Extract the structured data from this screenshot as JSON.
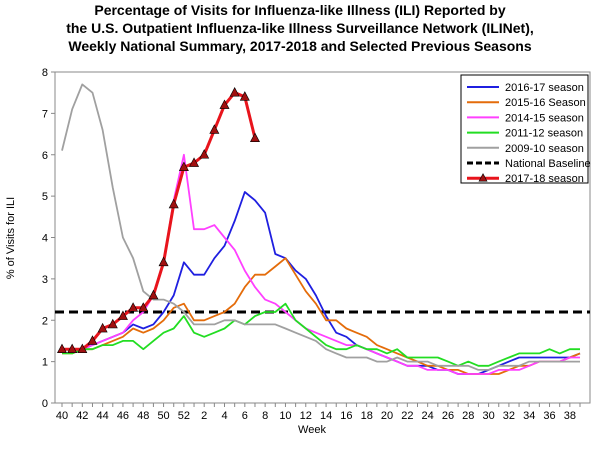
{
  "chart_data": {
    "type": "line",
    "title": [
      "Percentage of Visits for Influenza-like Illness (ILI) Reported by",
      "the U.S. Outpatient Influenza-like Illness Surveillance Network (ILINet),",
      "Weekly National Summary, 2017-2018 and Selected Previous Seasons"
    ],
    "x_label": "Week",
    "y_label": "% of Visits for ILI",
    "categories": [
      "40",
      null,
      "42",
      null,
      "44",
      null,
      "46",
      null,
      "48",
      null,
      "50",
      null,
      "52",
      null,
      "2",
      null,
      "4",
      null,
      "6",
      null,
      "8",
      null,
      "10",
      null,
      "12",
      null,
      "14",
      null,
      "16",
      null,
      "18",
      null,
      "20",
      null,
      "22",
      null,
      "24",
      null,
      "26",
      null,
      "28",
      null,
      "30",
      null,
      "32",
      null,
      "34",
      null,
      "36",
      null,
      "38",
      null
    ],
    "ylim": [
      0,
      8
    ],
    "yticks": [
      0,
      1,
      2,
      3,
      4,
      5,
      6,
      7,
      8
    ],
    "series": [
      {
        "name": "2016-17 season",
        "color": "#1f1fe0",
        "values": [
          1.3,
          1.3,
          1.3,
          1.4,
          1.5,
          1.6,
          1.7,
          1.9,
          1.8,
          1.9,
          2.2,
          2.6,
          3.4,
          3.1,
          3.1,
          3.5,
          3.8,
          4.4,
          5.1,
          4.9,
          4.6,
          3.6,
          3.5,
          3.2,
          3.0,
          2.6,
          2.1,
          1.7,
          1.6,
          1.4,
          1.3,
          1.2,
          1.1,
          1.0,
          0.9,
          0.9,
          0.9,
          0.8,
          0.8,
          0.7,
          0.7,
          0.7,
          0.8,
          0.9,
          1.0,
          1.1,
          1.1,
          1.1,
          1.1,
          1.1,
          1.1,
          1.2
        ]
      },
      {
        "name": "2015-16 Season",
        "color": "#e46c0a",
        "values": [
          1.2,
          1.2,
          1.3,
          1.3,
          1.4,
          1.5,
          1.6,
          1.8,
          1.7,
          1.8,
          2.0,
          2.3,
          2.4,
          2.0,
          2.0,
          2.1,
          2.2,
          2.4,
          2.8,
          3.1,
          3.1,
          3.3,
          3.5,
          3.1,
          2.7,
          2.4,
          2.0,
          2.0,
          1.8,
          1.7,
          1.6,
          1.4,
          1.3,
          1.2,
          1.1,
          1.0,
          0.9,
          0.9,
          0.8,
          0.8,
          0.7,
          0.7,
          0.7,
          0.7,
          0.8,
          0.9,
          0.9,
          1.0,
          1.0,
          1.0,
          1.1,
          1.2
        ]
      },
      {
        "name": "2014-15 season",
        "color": "#ff40ff",
        "values": [
          1.3,
          1.3,
          1.3,
          1.4,
          1.5,
          1.6,
          1.7,
          2.0,
          2.2,
          2.6,
          3.4,
          4.9,
          6.0,
          4.2,
          4.2,
          4.3,
          4.0,
          3.7,
          3.2,
          2.8,
          2.5,
          2.4,
          2.2,
          2.0,
          1.8,
          1.7,
          1.6,
          1.5,
          1.4,
          1.4,
          1.3,
          1.2,
          1.1,
          1.0,
          0.9,
          0.9,
          0.8,
          0.8,
          0.8,
          0.7,
          0.7,
          0.7,
          0.7,
          0.8,
          0.8,
          0.8,
          0.9,
          1.0,
          1.0,
          1.0,
          1.1,
          1.1
        ]
      },
      {
        "name": "2011-12 season",
        "color": "#22dd22",
        "values": [
          1.2,
          1.2,
          1.3,
          1.3,
          1.4,
          1.4,
          1.5,
          1.5,
          1.3,
          1.5,
          1.7,
          1.8,
          2.1,
          1.7,
          1.6,
          1.7,
          1.8,
          2.0,
          1.9,
          2.1,
          2.2,
          2.2,
          2.4,
          2.0,
          1.8,
          1.6,
          1.4,
          1.3,
          1.3,
          1.4,
          1.3,
          1.3,
          1.2,
          1.3,
          1.1,
          1.1,
          1.1,
          1.1,
          1.0,
          0.9,
          1.0,
          0.9,
          0.9,
          1.0,
          1.1,
          1.2,
          1.2,
          1.2,
          1.3,
          1.2,
          1.3,
          1.3
        ]
      },
      {
        "name": "2009-10 season",
        "color": "#a0a0a0",
        "values": [
          6.1,
          7.1,
          7.7,
          7.5,
          6.6,
          5.2,
          4.0,
          3.5,
          2.7,
          2.5,
          2.5,
          2.4,
          2.2,
          1.9,
          1.9,
          1.9,
          2.0,
          2.0,
          1.9,
          1.9,
          1.9,
          1.9,
          1.8,
          1.7,
          1.6,
          1.5,
          1.3,
          1.2,
          1.1,
          1.1,
          1.1,
          1.0,
          1.0,
          1.1,
          1.0,
          1.0,
          1.0,
          0.9,
          0.9,
          0.9,
          0.9,
          0.8,
          0.8,
          0.9,
          0.9,
          0.9,
          1.0,
          1.0,
          1.0,
          1.0,
          1.0,
          1.0
        ]
      },
      {
        "name": "2017-18 season",
        "color": "#e8141c",
        "marker": "triangle",
        "marker_color": "#a01010",
        "values": [
          1.3,
          1.3,
          1.3,
          1.5,
          1.8,
          1.9,
          2.1,
          2.3,
          2.3,
          2.6,
          3.4,
          4.8,
          5.7,
          5.8,
          6.0,
          6.6,
          7.2,
          7.5,
          7.4,
          6.4,
          null,
          null,
          null,
          null,
          null,
          null,
          null,
          null,
          null,
          null,
          null,
          null,
          null,
          null,
          null,
          null,
          null,
          null,
          null,
          null,
          null,
          null,
          null,
          null,
          null,
          null,
          null,
          null,
          null,
          null,
          null,
          null
        ]
      }
    ],
    "baseline": {
      "name": "National Baseline",
      "value": 2.2,
      "color": "#000000"
    }
  }
}
